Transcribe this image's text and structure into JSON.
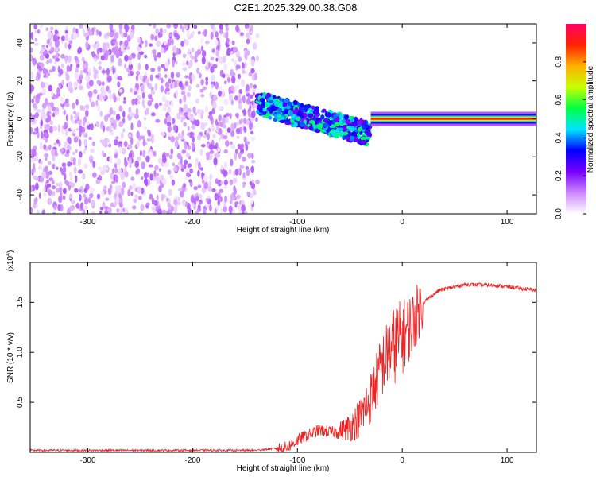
{
  "title": "C2E1.2025.329.00.38.G08",
  "chart_data": [
    {
      "type": "heatmap",
      "xlabel": "Height of straight line (km)",
      "ylabel": "Frequency (Hz)",
      "xlim": [
        -355,
        128
      ],
      "ylim": [
        -50,
        50
      ],
      "xticks": [
        -300,
        -200,
        -100,
        0,
        100
      ],
      "yticks": [
        -40,
        -20,
        0,
        20,
        40
      ],
      "colorbar": {
        "label": "Normalized spectral amplitude",
        "range": [
          0,
          1
        ],
        "ticks": [
          "0.0",
          "0.2",
          "0.4",
          "0.6",
          "0.8"
        ],
        "colors": [
          "#ffffff",
          "#cc88ff",
          "#7700ff",
          "#0000ff",
          "#00e5ff",
          "#00ff44",
          "#c8ff00",
          "#ffb000",
          "#ff2200",
          "#ff0066"
        ]
      },
      "regions": [
        {
          "name": "noise",
          "x": [
            -355,
            -138
          ],
          "y": [
            -50,
            50
          ],
          "amplitude": 0.15
        },
        {
          "name": "transition",
          "x": [
            -138,
            -30
          ],
          "center_freq": [
            8,
            -8
          ],
          "amplitude": 0.4
        },
        {
          "name": "tone",
          "x": [
            -30,
            128
          ],
          "center_freq": 0,
          "amplitude": 0.9
        }
      ]
    },
    {
      "type": "line",
      "xlabel": "Height of straight line (km)",
      "ylabel": "SNR (10 * v/v)",
      "scale_label": "(x10",
      "scale_exp": "4",
      "scale_close": ")",
      "xlim": [
        -355,
        128
      ],
      "ylim": [
        0,
        1.9
      ],
      "xticks": [
        -300,
        -200,
        -100,
        0,
        100
      ],
      "yticks": [
        "0.5",
        "1.0",
        "1.5"
      ],
      "series": [
        {
          "name": "SNR",
          "color": "#ee2222"
        }
      ],
      "profile": [
        [
          -355,
          0.02
        ],
        [
          -140,
          0.02
        ],
        [
          -110,
          0.05
        ],
        [
          -95,
          0.15
        ],
        [
          -80,
          0.22
        ],
        [
          -65,
          0.2
        ],
        [
          -50,
          0.25
        ],
        [
          -40,
          0.35
        ],
        [
          -30,
          0.55
        ],
        [
          -20,
          0.85
        ],
        [
          -10,
          1.05
        ],
        [
          0,
          1.15
        ],
        [
          10,
          1.3
        ],
        [
          20,
          1.5
        ],
        [
          35,
          1.62
        ],
        [
          60,
          1.68
        ],
        [
          90,
          1.67
        ],
        [
          128,
          1.62
        ]
      ]
    }
  ]
}
